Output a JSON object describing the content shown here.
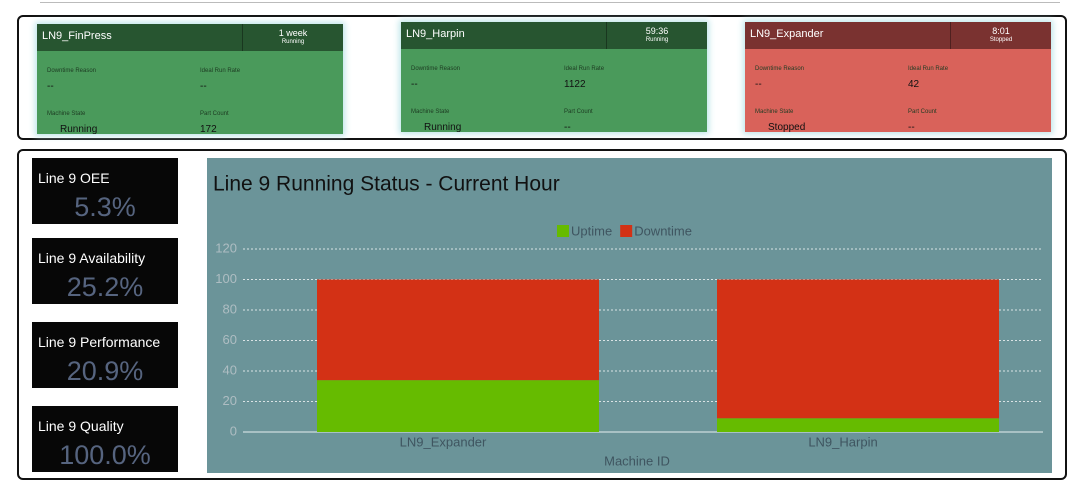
{
  "machines": [
    {
      "name": "LN9_FinPress",
      "duration": "1 week",
      "status": "Running",
      "fields": [
        {
          "label": "Downtime Reason",
          "value": "--"
        },
        {
          "label": "Ideal Run Rate",
          "value": "--"
        },
        {
          "label": "Machine State",
          "value": "Running"
        },
        {
          "label": "Part Count",
          "value": "172"
        }
      ]
    },
    {
      "name": "LN9_Harpin",
      "duration": "59:36",
      "status": "Running",
      "fields": [
        {
          "label": "Downtime Reason",
          "value": "--"
        },
        {
          "label": "Ideal Run Rate",
          "value": "1122"
        },
        {
          "label": "Machine State",
          "value": "Running"
        },
        {
          "label": "Part Count",
          "value": "--"
        }
      ]
    },
    {
      "name": "LN9_Expander",
      "duration": "8:01",
      "status": "Stopped",
      "fields": [
        {
          "label": "Downtime Reason",
          "value": "--"
        },
        {
          "label": "Ideal Run Rate",
          "value": "42"
        },
        {
          "label": "Machine State",
          "value": "Stopped"
        },
        {
          "label": "Part Count",
          "value": "--"
        }
      ]
    }
  ],
  "kpis": [
    {
      "label": "Line 9 OEE",
      "value": "5.3%"
    },
    {
      "label": "Line 9 Availability",
      "value": "25.2%"
    },
    {
      "label": "Line 9 Performance",
      "value": "20.9%"
    },
    {
      "label": "Line 9 Quality",
      "value": "100.0%"
    }
  ],
  "chart_data": {
    "type": "stacked_bar",
    "title": "Line 9 Running Status - Current Hour",
    "x_label": "Machine ID",
    "categories": [
      "LN9_Expander",
      "LN9_Harpin"
    ],
    "series": [
      {
        "name": "Uptime",
        "color": "#66bb00",
        "values": [
          34,
          9
        ]
      },
      {
        "name": "Downtime",
        "color": "#d33115",
        "values": [
          66,
          91
        ]
      }
    ],
    "ylim": [
      0,
      120
    ],
    "yticks": [
      0,
      20,
      40,
      60,
      80,
      100,
      120
    ],
    "grid": true,
    "legend": "top"
  }
}
